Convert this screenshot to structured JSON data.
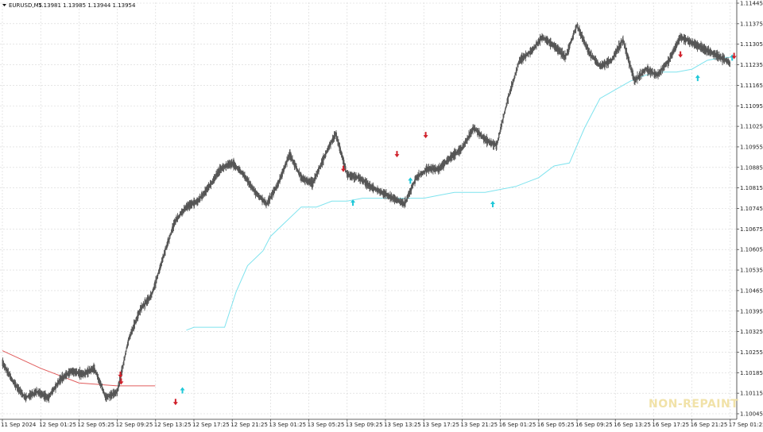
{
  "chart_data": {
    "type": "line",
    "header": {
      "symbol": "EURUSD,M5",
      "ohlc": "1.13981 1.13985 1.13944 1.13954"
    },
    "watermark": "NON-REPAINT",
    "y_ticks": [
      "1.11445",
      "1.11375",
      "1.11305",
      "1.11235",
      "1.11165",
      "1.11095",
      "1.11025",
      "1.10955",
      "1.10885",
      "1.10815",
      "1.10745",
      "1.10675",
      "1.10605",
      "1.10535",
      "1.10465",
      "1.10395",
      "1.10325",
      "1.10255",
      "1.10185",
      "1.10115",
      "1.10045"
    ],
    "ylim": [
      1.10045,
      1.11445
    ],
    "x_ticks": [
      "11 Sep 2024",
      "12 Sep 01:25",
      "12 Sep 05:25",
      "12 Sep 09:25",
      "12 Sep 13:25",
      "12 Sep 17:25",
      "12 Sep 21:25",
      "13 Sep 01:25",
      "13 Sep 05:25",
      "13 Sep 09:25",
      "13 Sep 13:25",
      "13 Sep 17:25",
      "13 Sep 21:25",
      "16 Sep 01:25",
      "16 Sep 05:25",
      "16 Sep 09:25",
      "16 Sep 13:25",
      "16 Sep 17:25",
      "16 Sep 21:25",
      "17 Sep 01:25"
    ],
    "grid": true,
    "colors": {
      "price": "#555555",
      "trail_up": "#7fe3ee",
      "trail_down": "#e05c5c",
      "arrow_up": "#20c8d8",
      "arrow_down": "#d0202a",
      "grid": "#d6d6d6",
      "axis": "#333333"
    },
    "series": [
      {
        "role": "price",
        "x_index": [
          0,
          0.3,
          0.6,
          0.9,
          1.2,
          1.5,
          1.8,
          2.1,
          2.4,
          2.7,
          3.0,
          3.3,
          3.6,
          3.9,
          4.2,
          4.5,
          4.8,
          5.1,
          5.4,
          5.7,
          6.0,
          6.3,
          6.6,
          6.9,
          7.2,
          7.5,
          7.8,
          8.1,
          8.4,
          8.7,
          9.0,
          9.3,
          9.6,
          9.9,
          10.2,
          10.5,
          10.8,
          11.1,
          11.4,
          11.7,
          12.0,
          12.3,
          12.6,
          12.9,
          13.2,
          13.5,
          13.8,
          14.1,
          14.4,
          14.7,
          15.0,
          15.3,
          15.6,
          15.9,
          16.2,
          16.5,
          16.8,
          17.1,
          17.4,
          17.7,
          18.0,
          18.3,
          18.6,
          18.9,
          19.0
        ],
        "values": [
          1.1022,
          1.1015,
          1.101,
          1.1012,
          1.101,
          1.1016,
          1.1019,
          1.1018,
          1.102,
          1.101,
          1.1012,
          1.103,
          1.104,
          1.1045,
          1.1058,
          1.107,
          1.1075,
          1.1077,
          1.1082,
          1.1088,
          1.109,
          1.1086,
          1.108,
          1.1076,
          1.1083,
          1.1093,
          1.1085,
          1.1083,
          1.1092,
          1.11,
          1.1086,
          1.1085,
          1.1082,
          1.108,
          1.1078,
          1.1076,
          1.1085,
          1.1088,
          1.1088,
          1.1092,
          1.1095,
          1.1102,
          1.1098,
          1.1096,
          1.1112,
          1.1125,
          1.1128,
          1.1133,
          1.113,
          1.1126,
          1.1137,
          1.1128,
          1.1123,
          1.1125,
          1.1132,
          1.1118,
          1.1122,
          1.112,
          1.1125,
          1.1133,
          1.1131,
          1.1129,
          1.1127,
          1.1125,
          1.1124
        ]
      },
      {
        "role": "trailing-stop",
        "x_index": [
          0,
          1.0,
          2.0,
          3.0,
          3.5,
          3.99
        ],
        "values": [
          1.1026,
          1.102,
          1.1015,
          1.1014,
          1.1014,
          1.1014
        ],
        "direction": "down"
      },
      {
        "role": "trailing-stop",
        "x_index": [
          4.8,
          5.0,
          5.2,
          5.8,
          6.1,
          6.4,
          6.8,
          7.0,
          7.4,
          7.8,
          8.2,
          8.6,
          9.0,
          9.4,
          9.8,
          10.2,
          10.6,
          11.0,
          11.4,
          11.8,
          12.2,
          12.6,
          13.0,
          13.4,
          14.0,
          14.4,
          14.8,
          15.2,
          15.6,
          16.0,
          16.4,
          16.8,
          17.2,
          17.6,
          18.0,
          18.4,
          18.8,
          19.0
        ],
        "values": [
          1.1033,
          1.1034,
          1.1034,
          1.1034,
          1.1046,
          1.1055,
          1.106,
          1.1065,
          1.107,
          1.1075,
          1.1075,
          1.1077,
          1.1077,
          1.1078,
          1.1078,
          1.1078,
          1.1078,
          1.1078,
          1.1079,
          1.108,
          1.108,
          1.108,
          1.1081,
          1.1082,
          1.1085,
          1.1089,
          1.109,
          1.1102,
          1.1112,
          1.1115,
          1.1118,
          1.112,
          1.1121,
          1.1121,
          1.1122,
          1.1125,
          1.1126,
          1.1126
        ],
        "direction": "up"
      }
    ],
    "arrows": [
      {
        "x_index": 3.1,
        "y": 1.10155,
        "dir": "down"
      },
      {
        "x_index": 3.08,
        "y": 1.10178,
        "dir": "down"
      },
      {
        "x_index": 4.52,
        "y": 1.10085,
        "dir": "down"
      },
      {
        "x_index": 4.7,
        "y": 1.10125,
        "dir": "up"
      },
      {
        "x_index": 9.15,
        "y": 1.10765,
        "dir": "up"
      },
      {
        "x_index": 8.9,
        "y": 1.1088,
        "dir": "down"
      },
      {
        "x_index": 10.3,
        "y": 1.1093,
        "dir": "down"
      },
      {
        "x_index": 10.65,
        "y": 1.1084,
        "dir": "up"
      },
      {
        "x_index": 11.05,
        "y": 1.10995,
        "dir": "down"
      },
      {
        "x_index": 12.8,
        "y": 1.1076,
        "dir": "up"
      },
      {
        "x_index": 17.7,
        "y": 1.1127,
        "dir": "down"
      },
      {
        "x_index": 18.15,
        "y": 1.1119,
        "dir": "up"
      },
      {
        "x_index": 19.05,
        "y": 1.1126,
        "dir": "up"
      },
      {
        "x_index": 19.1,
        "y": 1.11265,
        "dir": "down"
      }
    ]
  }
}
